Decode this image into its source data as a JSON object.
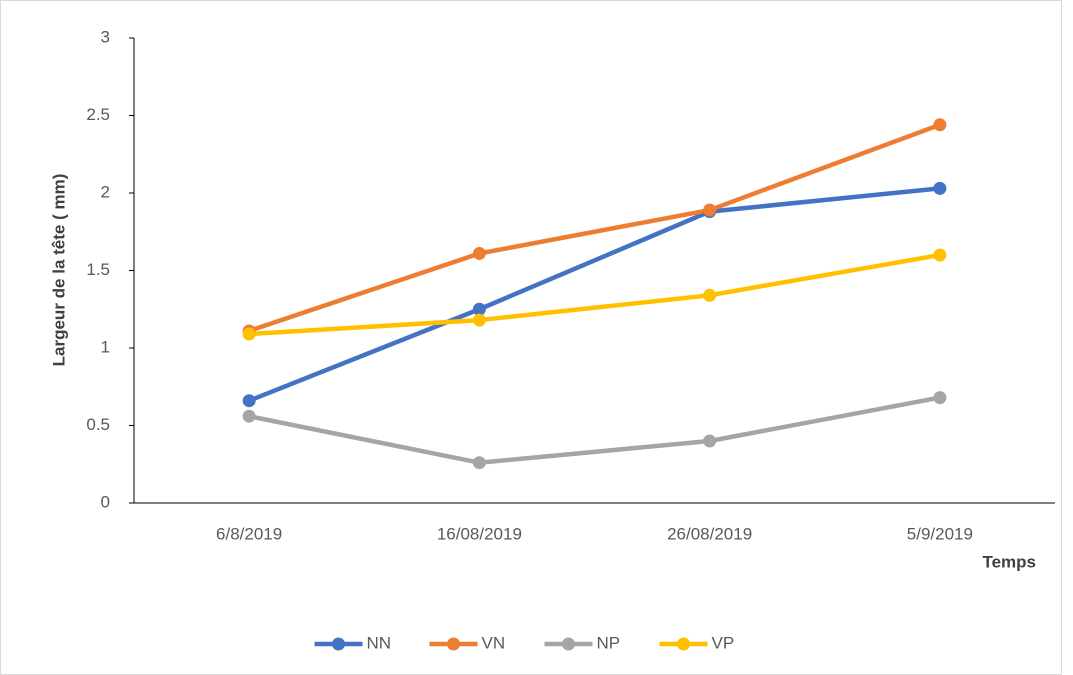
{
  "chart_data": {
    "type": "line",
    "y_label": "Largeur de la tête ( mm)",
    "x_label": "Temps",
    "categories": [
      "6/8/2019",
      "16/08/2019",
      "26/08/2019",
      "5/9/2019"
    ],
    "series": [
      {
        "name": "NN",
        "color": "#4472c4",
        "values": [
          0.66,
          1.25,
          1.88,
          2.03
        ]
      },
      {
        "name": "VN",
        "color": "#ed7d31",
        "values": [
          1.11,
          1.61,
          1.89,
          2.44
        ]
      },
      {
        "name": "NP",
        "color": "#a5a5a5",
        "values": [
          0.56,
          0.26,
          0.4,
          0.68
        ]
      },
      {
        "name": "VP",
        "color": "#ffc000",
        "values": [
          1.09,
          1.18,
          1.34,
          1.6
        ]
      }
    ],
    "ylim": [
      0,
      3
    ],
    "yticks": [
      0,
      0.5,
      1,
      1.5,
      2,
      2.5,
      3
    ],
    "grid": false,
    "legend": "bottom"
  }
}
